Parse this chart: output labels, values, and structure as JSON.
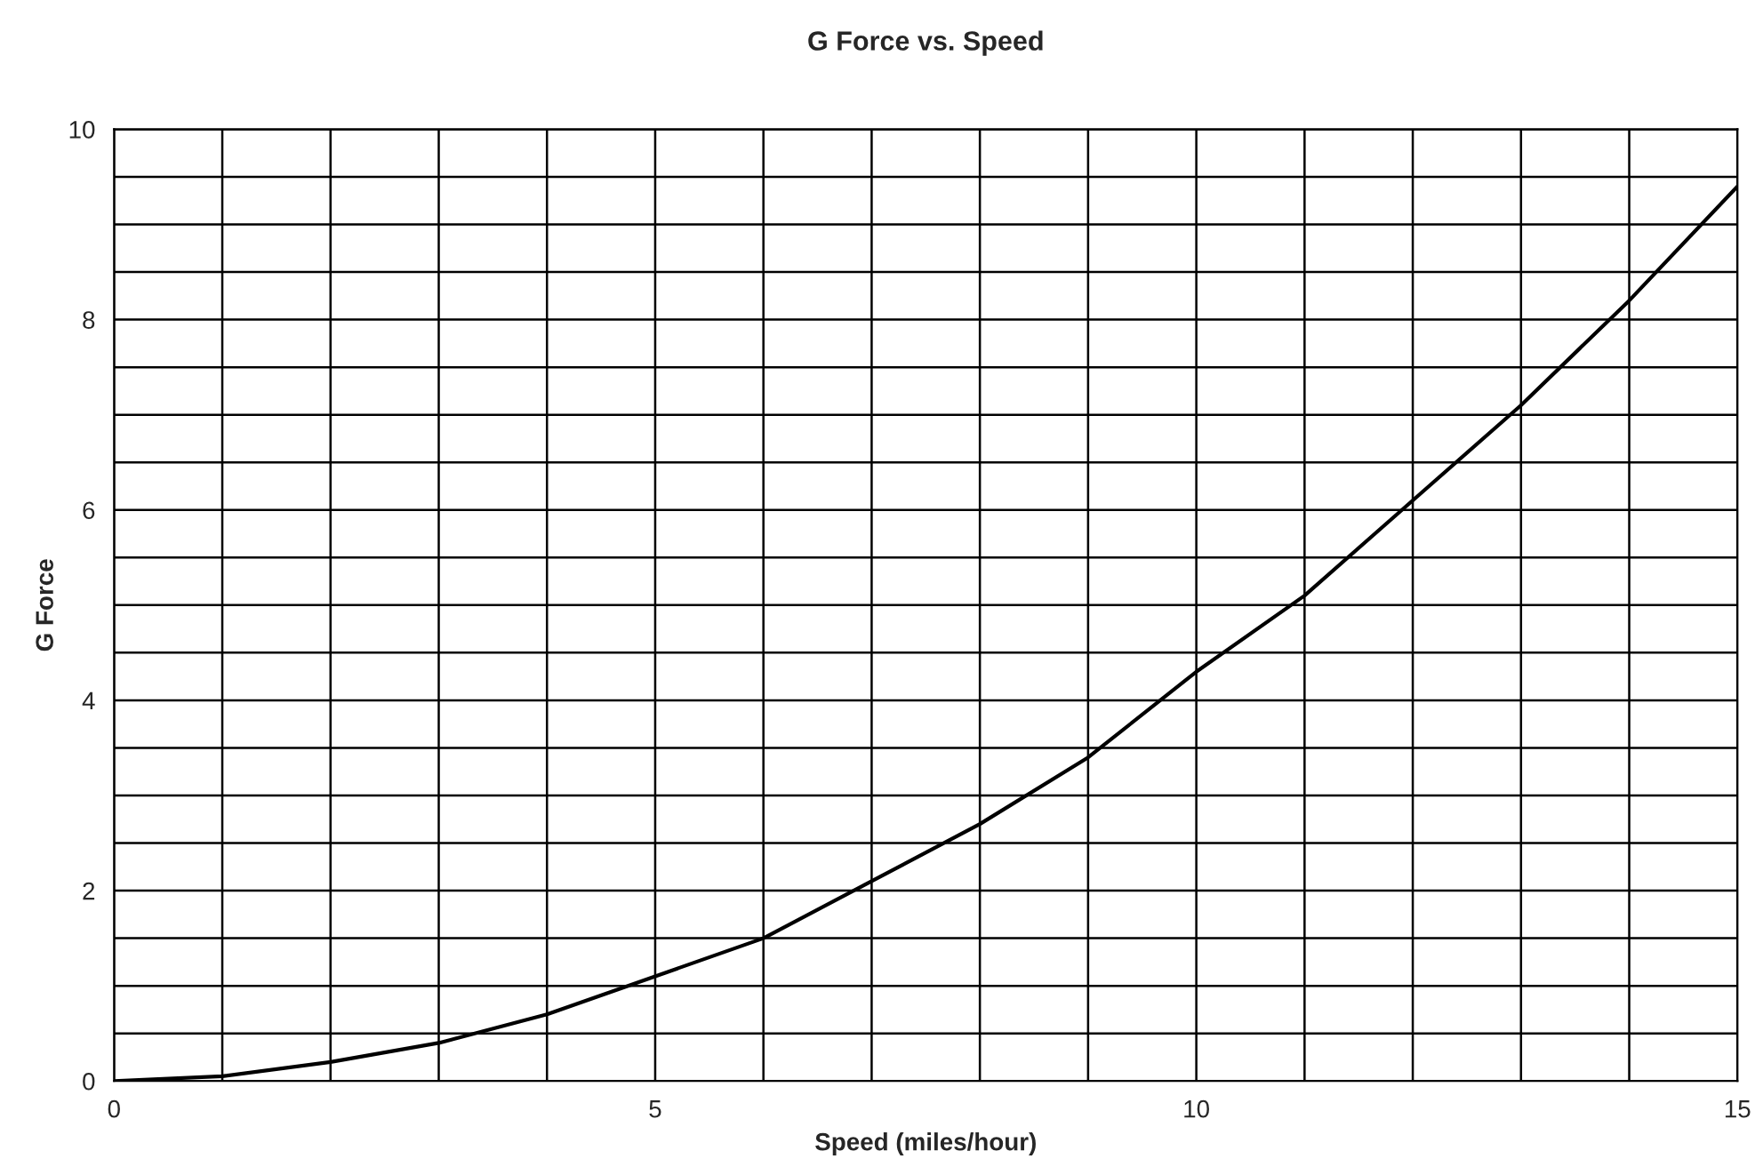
{
  "chart_data": {
    "type": "line",
    "title": "G Force vs. Speed",
    "xlabel": "Speed (miles/hour)",
    "ylabel": "G Force",
    "x": [
      0,
      1,
      2,
      3,
      4,
      5,
      6,
      7,
      8,
      9,
      10,
      11,
      12,
      13,
      14,
      15
    ],
    "series": [
      {
        "color": "#000000",
        "values": [
          0,
          0.05,
          0.2,
          0.4,
          0.7,
          1.1,
          1.5,
          2.1,
          2.7,
          3.4,
          4.3,
          5.1,
          6.1,
          7.1,
          8.2,
          9.4
        ]
      }
    ],
    "xlim": [
      0,
      15
    ],
    "ylim": [
      0,
      10
    ],
    "xticks": [
      0,
      {
        "value": 1,
        "label": null
      },
      {
        "value": 2,
        "label": null
      },
      {
        "value": 3,
        "label": null
      },
      {
        "value": 4,
        "label": null
      },
      5,
      {
        "value": 6,
        "label": null
      },
      {
        "value": 7,
        "label": null
      },
      {
        "value": 8,
        "label": null
      },
      {
        "value": 9,
        "label": null
      },
      10,
      {
        "value": 11,
        "label": null
      },
      {
        "value": 12,
        "label": null
      },
      {
        "value": 13,
        "label": null
      },
      {
        "value": 14,
        "label": null
      },
      15
    ],
    "yticks": [
      0,
      {
        "value": 0.5,
        "label": null
      },
      {
        "value": 1,
        "label": null
      },
      {
        "value": 1.5,
        "label": null
      },
      2,
      {
        "value": 2.5,
        "label": null
      },
      {
        "value": 3,
        "label": null
      },
      {
        "value": 3.5,
        "label": null
      },
      4,
      {
        "value": 4.5,
        "label": null
      },
      {
        "value": 5,
        "label": null
      },
      {
        "value": 5.5,
        "label": null
      },
      6,
      {
        "value": 6.5,
        "label": null
      },
      {
        "value": 7,
        "label": null
      },
      {
        "value": 7.5,
        "label": null
      },
      8,
      {
        "value": 8.5,
        "label": null
      },
      {
        "value": 9,
        "label": null
      },
      {
        "value": 9.5,
        "label": null
      },
      10
    ],
    "grid": true,
    "legend": false,
    "marker": "none",
    "line_style": "solid"
  }
}
